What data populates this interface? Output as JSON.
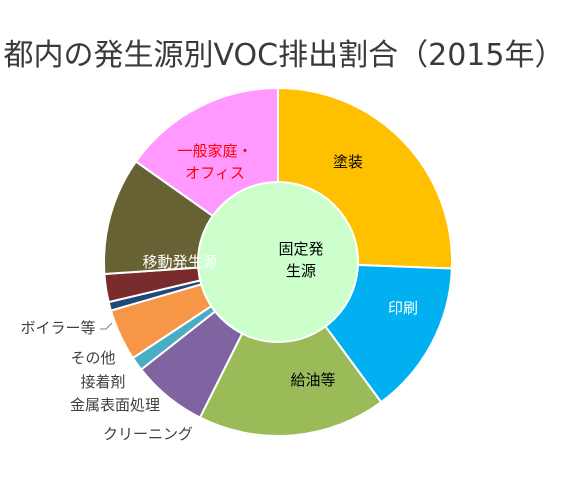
{
  "chart_data": {
    "type": "pie",
    "title": "都内の発生源別VOC排出割合（2015年）",
    "center_label_lines": [
      "固定発",
      "生源"
    ],
    "center_color": "#ccffcc",
    "outer": [
      {
        "label": "塗装",
        "value": 25.6,
        "color": "#ffc000",
        "text_color": "#000000"
      },
      {
        "label": "印刷",
        "value": 14.3,
        "color": "#00b0f0",
        "text_color": "#ffffff"
      },
      {
        "label": "給油等",
        "value": 17.5,
        "color": "#9bbb59",
        "text_color": "#000000"
      },
      {
        "label": "クリーニング",
        "value": 7.0,
        "color": "#8064a2",
        "text_color": "#404040"
      },
      {
        "label": "金属表面処理",
        "value": 1.3,
        "color": "#4bacc6",
        "text_color": "#404040"
      },
      {
        "label": "接着剤",
        "value": 4.8,
        "color": "#f79646",
        "text_color": "#404040"
      },
      {
        "label": "その他",
        "value": 0.8,
        "color": "#1f497d",
        "text_color": "#404040"
      },
      {
        "label": "ボイラー等",
        "value": 2.6,
        "color": "#7a2c2c",
        "text_color": "#404040"
      },
      {
        "label": "移動発生源",
        "value": 10.9,
        "color": "#666233",
        "text_color": "#ffffff"
      },
      {
        "label": "一般家庭・オフィス",
        "value": 15.2,
        "color": "#ff99ff",
        "text_color": "#ff0000"
      }
    ]
  }
}
